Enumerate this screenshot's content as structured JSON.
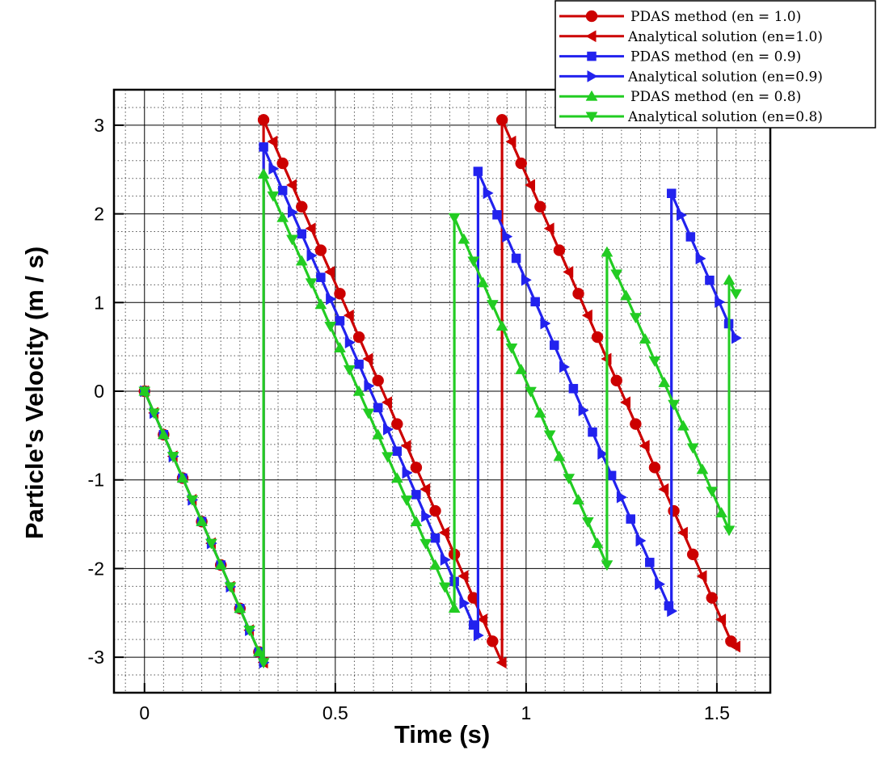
{
  "chart_data": {
    "type": "line",
    "xlabel": "Time (s)",
    "ylabel": "Particle's Velocity (m / s)",
    "xlim": [
      -0.08,
      1.64
    ],
    "ylim": [
      -3.4,
      3.4
    ],
    "xticks": [
      0,
      0.5,
      1,
      1.5
    ],
    "xtick_labels": [
      "0",
      "0.5",
      "1",
      "1.5"
    ],
    "yticks": [
      -3,
      -2,
      -1,
      0,
      1,
      2,
      3
    ],
    "ytick_labels": [
      "-3",
      "-2",
      "-1",
      "0",
      "1",
      "2",
      "3"
    ],
    "grid": "major solid, minor dotted",
    "legend_position": "top-right",
    "series": [
      {
        "name": "PDAS method (en = 1.0)",
        "color": "#cc0000",
        "marker": "circle",
        "x": [
          0.0,
          0.025,
          0.05,
          0.075,
          0.1,
          0.125,
          0.15,
          0.175,
          0.2,
          0.225,
          0.25,
          0.275,
          0.3,
          0.312,
          0.312,
          0.337,
          0.362,
          0.387,
          0.412,
          0.437,
          0.462,
          0.487,
          0.512,
          0.537,
          0.562,
          0.587,
          0.612,
          0.637,
          0.662,
          0.687,
          0.712,
          0.737,
          0.762,
          0.787,
          0.812,
          0.837,
          0.862,
          0.887,
          0.912,
          0.937,
          0.937,
          0.962,
          0.987,
          1.012,
          1.037,
          1.062,
          1.087,
          1.112,
          1.137,
          1.162,
          1.187,
          1.212,
          1.237,
          1.262,
          1.287,
          1.312,
          1.337,
          1.362,
          1.387,
          1.412,
          1.437,
          1.462,
          1.487,
          1.512,
          1.537,
          1.55
        ],
        "y": [
          0.0,
          -0.245,
          -0.49,
          -0.735,
          -0.98,
          -1.225,
          -1.47,
          -1.715,
          -1.96,
          -2.205,
          -2.45,
          -2.695,
          -2.94,
          -3.06,
          3.06,
          2.815,
          2.57,
          2.325,
          2.08,
          1.835,
          1.59,
          1.345,
          1.1,
          0.855,
          0.61,
          0.365,
          0.12,
          -0.125,
          -0.37,
          -0.615,
          -0.86,
          -1.105,
          -1.35,
          -1.595,
          -1.84,
          -2.085,
          -2.33,
          -2.575,
          -2.82,
          -3.06,
          3.06,
          2.815,
          2.57,
          2.325,
          2.08,
          1.835,
          1.59,
          1.345,
          1.1,
          0.855,
          0.61,
          0.365,
          0.12,
          -0.125,
          -0.37,
          -0.615,
          -0.86,
          -1.105,
          -1.35,
          -1.595,
          -1.84,
          -2.085,
          -2.33,
          -2.575,
          -2.82,
          -2.88
        ]
      },
      {
        "name": "Analytical solution (en=1.0)",
        "color": "#cc0000",
        "marker": "triangle-left",
        "x": [
          0.0,
          0.025,
          0.05,
          0.075,
          0.1,
          0.125,
          0.15,
          0.175,
          0.2,
          0.225,
          0.25,
          0.275,
          0.3,
          0.312,
          0.312,
          0.337,
          0.362,
          0.387,
          0.412,
          0.437,
          0.462,
          0.487,
          0.512,
          0.537,
          0.562,
          0.587,
          0.612,
          0.637,
          0.662,
          0.687,
          0.712,
          0.737,
          0.762,
          0.787,
          0.812,
          0.837,
          0.862,
          0.887,
          0.912,
          0.937,
          0.937,
          0.962,
          0.987,
          1.012,
          1.037,
          1.062,
          1.087,
          1.112,
          1.137,
          1.162,
          1.187,
          1.212,
          1.237,
          1.262,
          1.287,
          1.312,
          1.337,
          1.362,
          1.387,
          1.412,
          1.437,
          1.462,
          1.487,
          1.512,
          1.537,
          1.55
        ],
        "y": [
          0.0,
          -0.245,
          -0.49,
          -0.735,
          -0.98,
          -1.225,
          -1.47,
          -1.715,
          -1.96,
          -2.205,
          -2.45,
          -2.695,
          -2.94,
          -3.06,
          3.06,
          2.815,
          2.57,
          2.325,
          2.08,
          1.835,
          1.59,
          1.345,
          1.1,
          0.855,
          0.61,
          0.365,
          0.12,
          -0.125,
          -0.37,
          -0.615,
          -0.86,
          -1.105,
          -1.35,
          -1.595,
          -1.84,
          -2.085,
          -2.33,
          -2.575,
          -2.82,
          -3.06,
          3.06,
          2.815,
          2.57,
          2.325,
          2.08,
          1.835,
          1.59,
          1.345,
          1.1,
          0.855,
          0.61,
          0.365,
          0.12,
          -0.125,
          -0.37,
          -0.615,
          -0.86,
          -1.105,
          -1.35,
          -1.595,
          -1.84,
          -2.085,
          -2.33,
          -2.575,
          -2.82,
          -2.88
        ]
      },
      {
        "name": "PDAS method (en = 0.9)",
        "color": "#2222ee",
        "marker": "square",
        "x": [
          0.0,
          0.025,
          0.05,
          0.075,
          0.1,
          0.125,
          0.15,
          0.175,
          0.2,
          0.225,
          0.25,
          0.275,
          0.3,
          0.312,
          0.312,
          0.337,
          0.362,
          0.387,
          0.412,
          0.437,
          0.462,
          0.487,
          0.512,
          0.537,
          0.562,
          0.587,
          0.612,
          0.637,
          0.662,
          0.687,
          0.712,
          0.737,
          0.762,
          0.787,
          0.812,
          0.837,
          0.862,
          0.874,
          0.874,
          0.899,
          0.924,
          0.949,
          0.974,
          0.999,
          1.024,
          1.049,
          1.074,
          1.099,
          1.124,
          1.149,
          1.174,
          1.199,
          1.224,
          1.249,
          1.274,
          1.299,
          1.324,
          1.349,
          1.374,
          1.381,
          1.381,
          1.406,
          1.431,
          1.456,
          1.481,
          1.506,
          1.531,
          1.55
        ],
        "y": [
          0.0,
          -0.245,
          -0.49,
          -0.735,
          -0.98,
          -1.225,
          -1.47,
          -1.715,
          -1.96,
          -2.205,
          -2.45,
          -2.695,
          -2.94,
          -3.06,
          2.754,
          2.509,
          2.264,
          2.019,
          1.774,
          1.529,
          1.284,
          1.039,
          0.794,
          0.549,
          0.304,
          0.059,
          -0.186,
          -0.431,
          -0.676,
          -0.921,
          -1.166,
          -1.411,
          -1.656,
          -1.901,
          -2.146,
          -2.391,
          -2.636,
          -2.754,
          2.479,
          2.234,
          1.989,
          1.744,
          1.499,
          1.254,
          1.009,
          0.764,
          0.519,
          0.274,
          0.029,
          -0.216,
          -0.461,
          -0.706,
          -0.951,
          -1.196,
          -1.441,
          -1.686,
          -1.931,
          -2.176,
          -2.421,
          -2.479,
          2.231,
          1.986,
          1.741,
          1.496,
          1.251,
          1.006,
          0.761,
          0.6
        ]
      },
      {
        "name": "Analytical solution (en=0.9)",
        "color": "#2222ee",
        "marker": "triangle-right",
        "x": [
          0.0,
          0.025,
          0.05,
          0.075,
          0.1,
          0.125,
          0.15,
          0.175,
          0.2,
          0.225,
          0.25,
          0.275,
          0.3,
          0.312,
          0.312,
          0.337,
          0.362,
          0.387,
          0.412,
          0.437,
          0.462,
          0.487,
          0.512,
          0.537,
          0.562,
          0.587,
          0.612,
          0.637,
          0.662,
          0.687,
          0.712,
          0.737,
          0.762,
          0.787,
          0.812,
          0.837,
          0.862,
          0.874,
          0.874,
          0.899,
          0.924,
          0.949,
          0.974,
          0.999,
          1.024,
          1.049,
          1.074,
          1.099,
          1.124,
          1.149,
          1.174,
          1.199,
          1.224,
          1.249,
          1.274,
          1.299,
          1.324,
          1.349,
          1.374,
          1.381,
          1.381,
          1.406,
          1.431,
          1.456,
          1.481,
          1.506,
          1.531,
          1.55
        ],
        "y": [
          0.0,
          -0.245,
          -0.49,
          -0.735,
          -0.98,
          -1.225,
          -1.47,
          -1.715,
          -1.96,
          -2.205,
          -2.45,
          -2.695,
          -2.94,
          -3.06,
          2.754,
          2.509,
          2.264,
          2.019,
          1.774,
          1.529,
          1.284,
          1.039,
          0.794,
          0.549,
          0.304,
          0.059,
          -0.186,
          -0.431,
          -0.676,
          -0.921,
          -1.166,
          -1.411,
          -1.656,
          -1.901,
          -2.146,
          -2.391,
          -2.636,
          -2.754,
          2.479,
          2.234,
          1.989,
          1.744,
          1.499,
          1.254,
          1.009,
          0.764,
          0.519,
          0.274,
          0.029,
          -0.216,
          -0.461,
          -0.706,
          -0.951,
          -1.196,
          -1.441,
          -1.686,
          -1.931,
          -2.176,
          -2.421,
          -2.479,
          2.231,
          1.986,
          1.741,
          1.496,
          1.251,
          1.006,
          0.761,
          0.6
        ]
      },
      {
        "name": "PDAS method (en = 0.8)",
        "color": "#22cc22",
        "marker": "triangle-up",
        "x": [
          0.0,
          0.025,
          0.05,
          0.075,
          0.1,
          0.125,
          0.15,
          0.175,
          0.2,
          0.225,
          0.25,
          0.275,
          0.3,
          0.312,
          0.312,
          0.337,
          0.362,
          0.387,
          0.412,
          0.437,
          0.462,
          0.487,
          0.512,
          0.537,
          0.562,
          0.587,
          0.612,
          0.637,
          0.662,
          0.687,
          0.712,
          0.737,
          0.762,
          0.787,
          0.812,
          0.812,
          0.837,
          0.862,
          0.887,
          0.912,
          0.937,
          0.962,
          0.987,
          1.012,
          1.037,
          1.062,
          1.087,
          1.112,
          1.137,
          1.162,
          1.187,
          1.212,
          1.212,
          1.237,
          1.262,
          1.287,
          1.312,
          1.337,
          1.362,
          1.387,
          1.412,
          1.437,
          1.462,
          1.487,
          1.512,
          1.532,
          1.532,
          1.55
        ],
        "y": [
          0.0,
          -0.245,
          -0.49,
          -0.735,
          -0.98,
          -1.225,
          -1.47,
          -1.715,
          -1.96,
          -2.205,
          -2.45,
          -2.695,
          -2.94,
          -3.06,
          2.448,
          2.203,
          1.958,
          1.713,
          1.468,
          1.223,
          0.978,
          0.733,
          0.488,
          0.243,
          -0.002,
          -0.247,
          -0.492,
          -0.737,
          -0.982,
          -1.227,
          -1.472,
          -1.717,
          -1.962,
          -2.207,
          -2.448,
          1.958,
          1.713,
          1.468,
          1.223,
          0.978,
          0.733,
          0.488,
          0.243,
          -0.002,
          -0.247,
          -0.492,
          -0.737,
          -0.982,
          -1.227,
          -1.472,
          -1.717,
          -1.958,
          1.567,
          1.322,
          1.077,
          0.832,
          0.587,
          0.342,
          0.097,
          -0.148,
          -0.393,
          -0.638,
          -0.883,
          -1.128,
          -1.373,
          -1.567,
          1.253,
          1.1
        ]
      },
      {
        "name": "Analytical solution (en=0.8)",
        "color": "#22cc22",
        "marker": "triangle-down",
        "x": [
          0.0,
          0.025,
          0.05,
          0.075,
          0.1,
          0.125,
          0.15,
          0.175,
          0.2,
          0.225,
          0.25,
          0.275,
          0.3,
          0.312,
          0.312,
          0.337,
          0.362,
          0.387,
          0.412,
          0.437,
          0.462,
          0.487,
          0.512,
          0.537,
          0.562,
          0.587,
          0.612,
          0.637,
          0.662,
          0.687,
          0.712,
          0.737,
          0.762,
          0.787,
          0.812,
          0.812,
          0.837,
          0.862,
          0.887,
          0.912,
          0.937,
          0.962,
          0.987,
          1.012,
          1.037,
          1.062,
          1.087,
          1.112,
          1.137,
          1.162,
          1.187,
          1.212,
          1.212,
          1.237,
          1.262,
          1.287,
          1.312,
          1.337,
          1.362,
          1.387,
          1.412,
          1.437,
          1.462,
          1.487,
          1.512,
          1.532,
          1.532,
          1.55
        ],
        "y": [
          0.0,
          -0.245,
          -0.49,
          -0.735,
          -0.98,
          -1.225,
          -1.47,
          -1.715,
          -1.96,
          -2.205,
          -2.45,
          -2.695,
          -2.94,
          -3.06,
          2.448,
          2.203,
          1.958,
          1.713,
          1.468,
          1.223,
          0.978,
          0.733,
          0.488,
          0.243,
          -0.002,
          -0.247,
          -0.492,
          -0.737,
          -0.982,
          -1.227,
          -1.472,
          -1.717,
          -1.962,
          -2.207,
          -2.448,
          1.958,
          1.713,
          1.468,
          1.223,
          0.978,
          0.733,
          0.488,
          0.243,
          -0.002,
          -0.247,
          -0.492,
          -0.737,
          -0.982,
          -1.227,
          -1.472,
          -1.717,
          -1.958,
          1.567,
          1.322,
          1.077,
          0.832,
          0.587,
          0.342,
          0.097,
          -0.148,
          -0.393,
          -0.638,
          -0.883,
          -1.128,
          -1.373,
          -1.567,
          1.253,
          1.1
        ]
      }
    ]
  }
}
